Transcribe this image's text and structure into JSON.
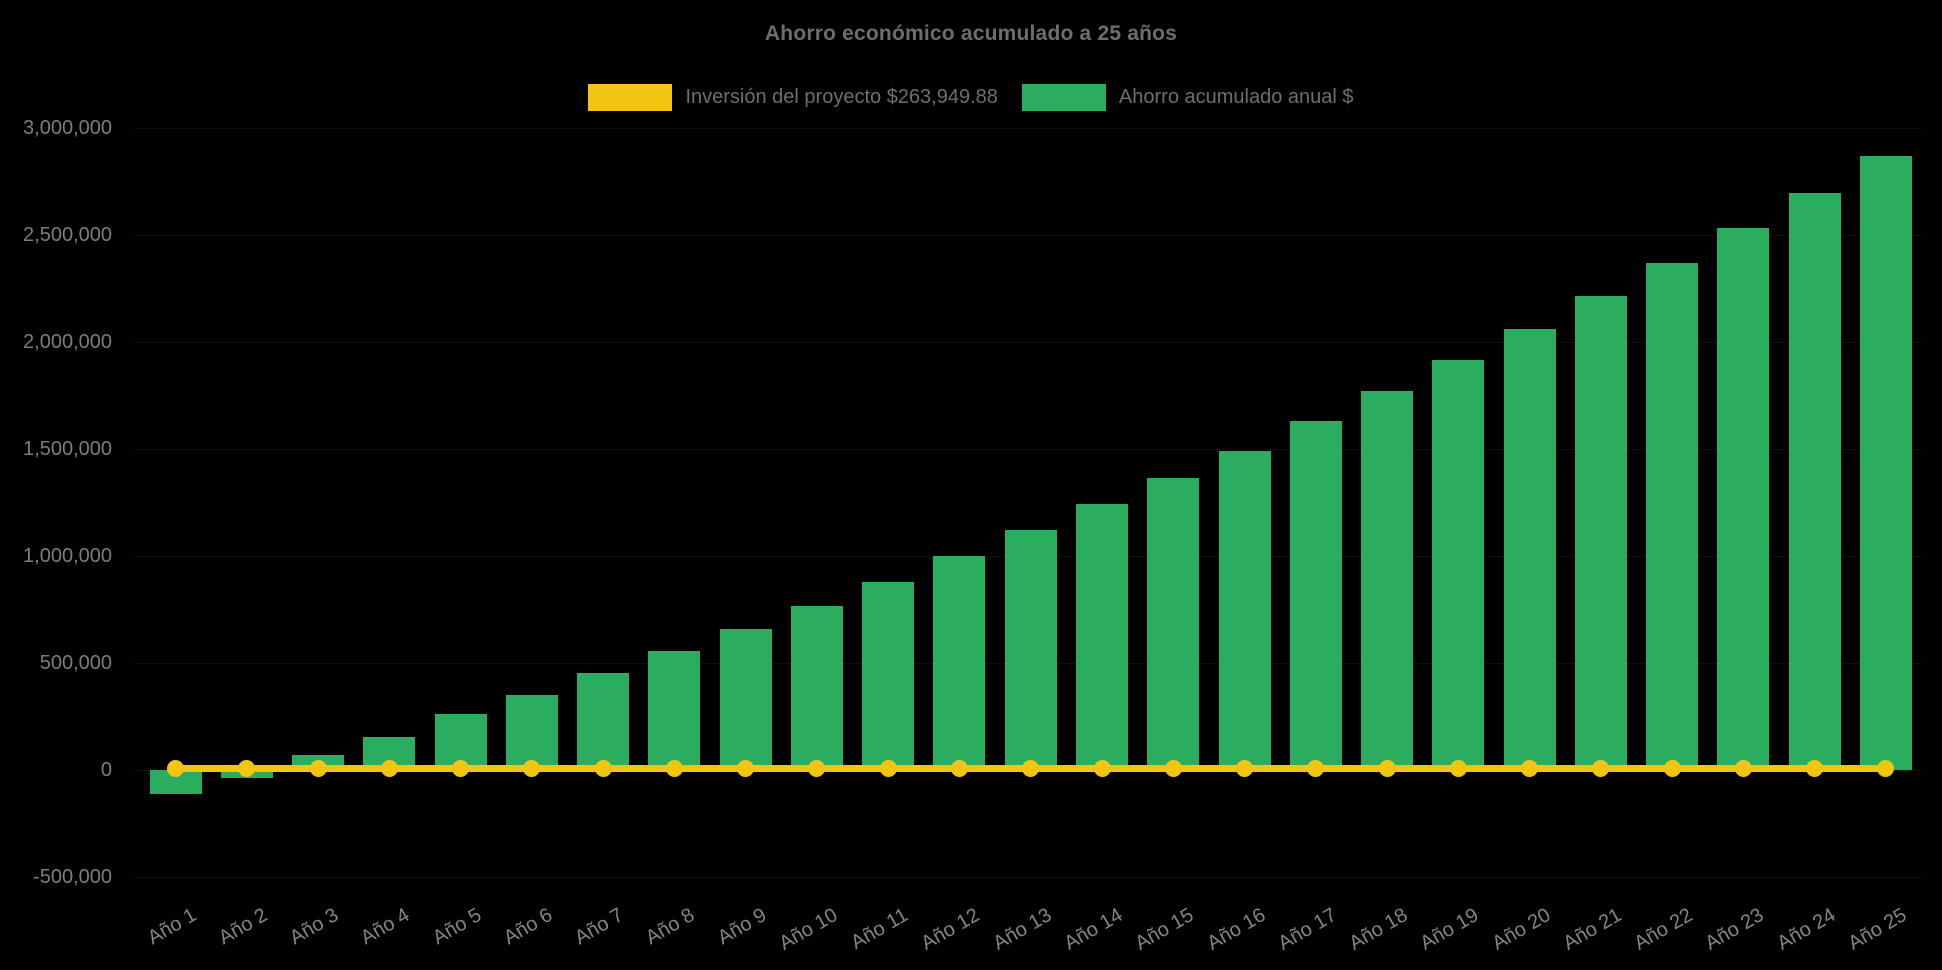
{
  "chart_data": {
    "type": "bar",
    "title": "Ahorro económico acumulado a 25 años",
    "background_color": "#000000",
    "legend_position": "top-center",
    "grid": "subtle",
    "categories": [
      "Año 1",
      "Año 2",
      "Año 3",
      "Año 4",
      "Año 5",
      "Año 6",
      "Año 7",
      "Año 8",
      "Año 9",
      "Año 10",
      "Año 11",
      "Año 12",
      "Año 13",
      "Año 14",
      "Año 15",
      "Año 16",
      "Año 17",
      "Año 18",
      "Año 19",
      "Año 20",
      "Año 21",
      "Año 22",
      "Año 23",
      "Año 24",
      "Año 25"
    ],
    "series": [
      {
        "name": "Inversión del proyecto $263,949.88",
        "type": "line",
        "color": "#f2c512",
        "marker": "circle",
        "investment_amount_in_label": 263949.88,
        "values": [
          0,
          0,
          0,
          0,
          0,
          0,
          0,
          0,
          0,
          0,
          0,
          0,
          0,
          0,
          0,
          0,
          0,
          0,
          0,
          0,
          0,
          0,
          0,
          0,
          0
        ]
      },
      {
        "name": "Ahorro acumulado anual $",
        "type": "bar",
        "color": "#2aad5f",
        "values": [
          -112000,
          -37000,
          70000,
          154000,
          262000,
          350000,
          453000,
          556000,
          659000,
          766000,
          879000,
          1000000,
          1122000,
          1243000,
          1365000,
          1491000,
          1631000,
          1771000,
          1916000,
          2061000,
          2215000,
          2369000,
          2533000,
          2696000,
          2869000
        ]
      }
    ],
    "y_axis": {
      "range": [
        -500000,
        3000000
      ],
      "tick_interval": 500000,
      "ticks": [
        {
          "value": 3000000,
          "label": "3,000,000"
        },
        {
          "value": 2500000,
          "label": "2,500,000"
        },
        {
          "value": 2000000,
          "label": "2,000,000"
        },
        {
          "value": 1500000,
          "label": "1,500,000"
        },
        {
          "value": 1000000,
          "label": "1,000,000"
        },
        {
          "value": 500000,
          "label": "500,000"
        },
        {
          "value": 0,
          "label": "0"
        },
        {
          "value": -500000,
          "label": "-500,000"
        }
      ]
    },
    "x_axis": {
      "label_rotation_deg": -30,
      "label_color": "#858585"
    },
    "text_colors": {
      "title": "#6d6d6d",
      "legend": "#6e6e6e",
      "y_labels": "#7d7d7d"
    }
  }
}
